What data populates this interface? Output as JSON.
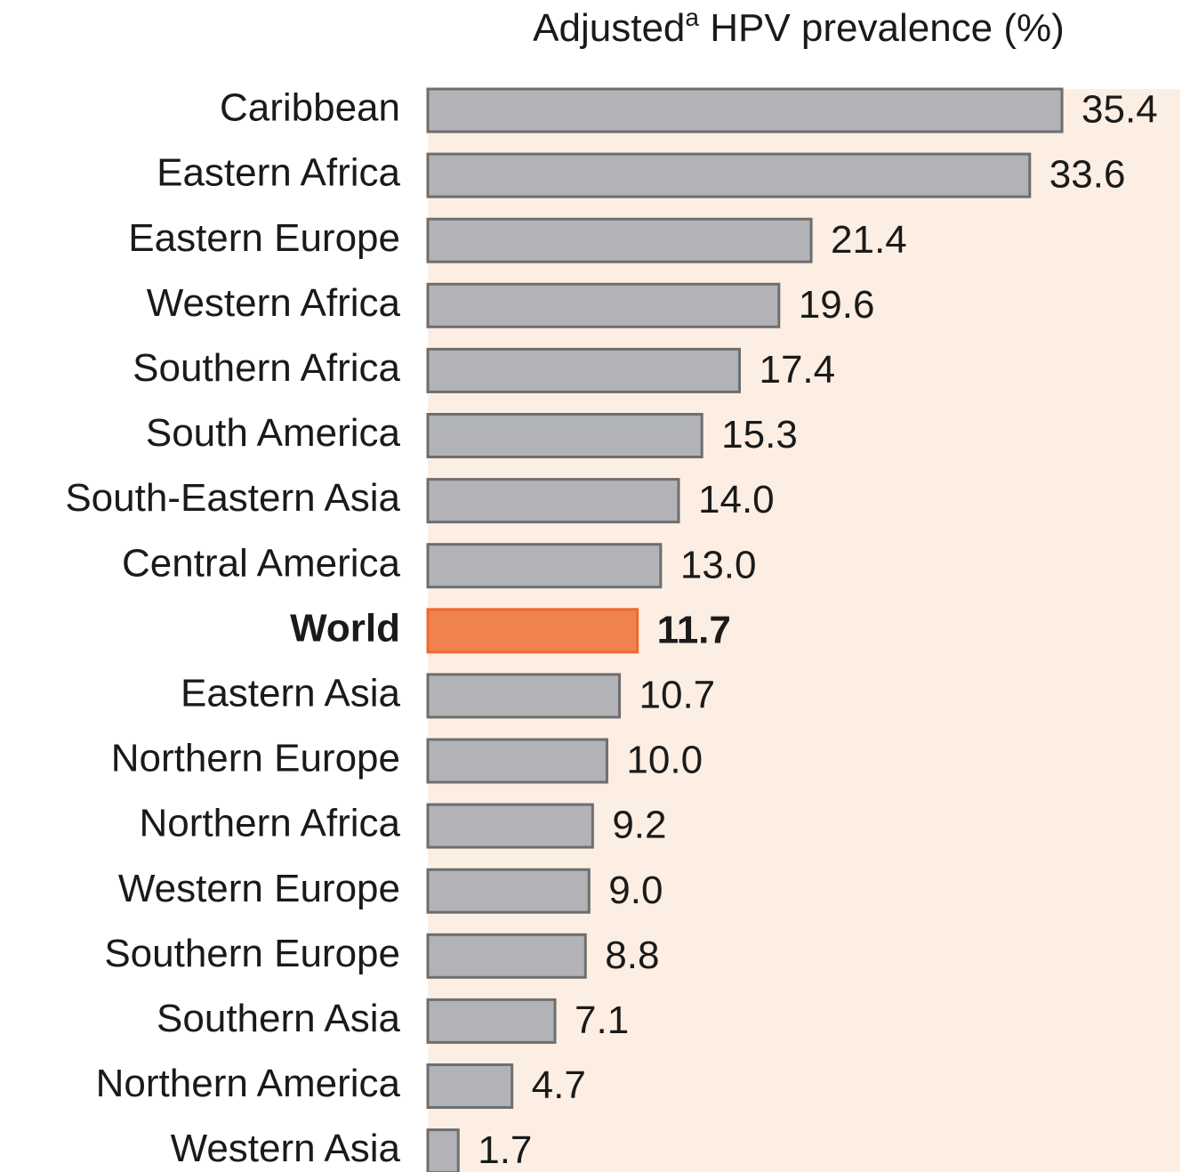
{
  "chart_data": {
    "type": "barh",
    "title_parts": [
      "Adjusted",
      "a",
      " HPV prevalence (%)"
    ],
    "categories": [
      "Caribbean",
      "Eastern Africa",
      "Eastern Europe",
      "Western Africa",
      "Southern Africa",
      "South America",
      "South-Eastern Asia",
      "Central America",
      "World",
      "Eastern Asia",
      "Northern Europe",
      "Northern Africa",
      "Western Europe",
      "Southern Europe",
      "Southern Asia",
      "Northern America",
      "Western Asia"
    ],
    "values": [
      35.4,
      33.6,
      21.4,
      19.6,
      17.4,
      15.3,
      14.0,
      13.0,
      11.7,
      10.7,
      10.0,
      9.2,
      9.0,
      8.8,
      7.1,
      4.7,
      1.7
    ],
    "value_labels": [
      "35.4",
      "33.6",
      "21.4",
      "19.6",
      "17.4",
      "15.3",
      "14.0",
      "13.0",
      "11.7",
      "10.7",
      "10.0",
      "9.2",
      "9.0",
      "8.8",
      "7.1",
      "4.7",
      "1.7"
    ],
    "color": "#b1b3b6",
    "colors": [
      "#b1b3b6",
      "#b1b3b6",
      "#b1b3b6",
      "#b1b3b6",
      "#b1b3b6",
      "#b1b3b6",
      "#b1b3b6",
      "#b1b3b6",
      "#f0824f",
      "#b1b3b6",
      "#b1b3b6",
      "#b1b3b6",
      "#b1b3b6",
      "#b1b3b6",
      "#b1b3b6",
      "#b1b3b6",
      "#b1b3b6"
    ],
    "xlim": [
      0,
      42
    ]
  }
}
